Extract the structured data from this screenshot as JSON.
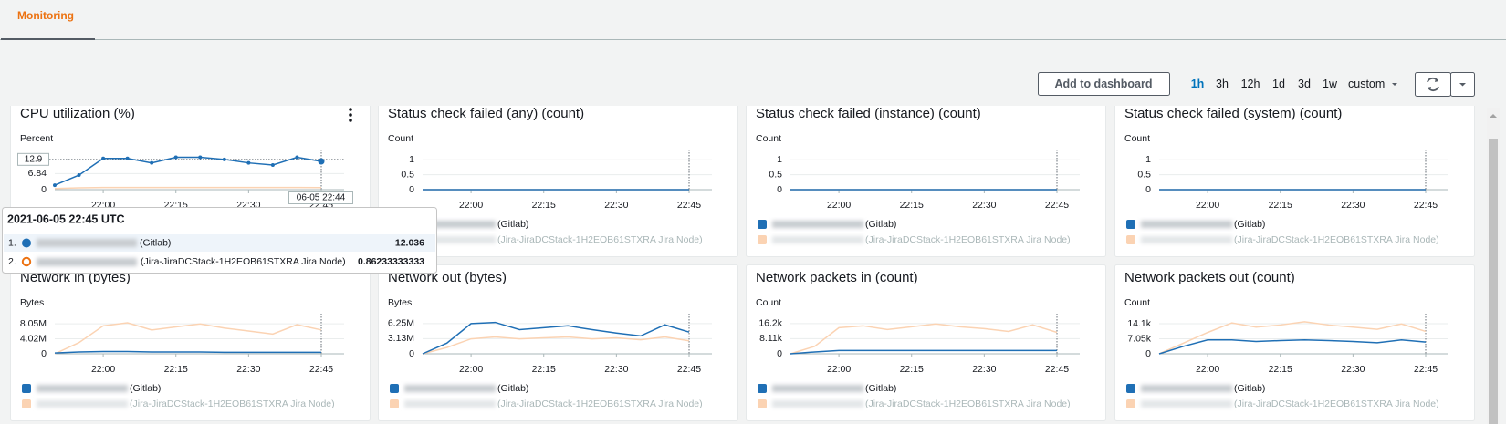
{
  "tabs": {
    "active": "Monitoring"
  },
  "toolbar": {
    "add_button": "Add to dashboard",
    "ranges": [
      "1h",
      "3h",
      "12h",
      "1d",
      "3d",
      "1w"
    ],
    "active_range": 0,
    "custom": "custom"
  },
  "widgets": [
    {
      "title": "CPU utilization (%)",
      "y_label": "Percent",
      "ylim": [
        0,
        14
      ],
      "yticks": [
        0,
        6.84
      ],
      "hover_value": 12.9,
      "hover_x_label": "06-05 22:44",
      "markers": true,
      "xticks": [
        "22:00",
        "22:15",
        "22:30",
        "22:45"
      ],
      "series": [
        {
          "name": "(Gitlab)",
          "color": "#1f6fb5",
          "values": [
            1.9,
            6.2,
            13.3,
            13.3,
            11.4,
            13.8,
            13.8,
            12.9,
            11.4,
            10.5,
            13.8,
            12.036
          ]
        },
        {
          "name": "(Jira-JiraDCStack-1H2EOB61STXRA Jira Node)",
          "color": "#fbd3b3",
          "values": [
            0.5,
            0.8,
            0.9,
            0.9,
            0.9,
            0.9,
            0.9,
            0.9,
            0.9,
            0.9,
            0.9,
            0.86233333333
          ]
        }
      ]
    },
    {
      "title": "Status check failed (any) (count)",
      "y_label": "Count",
      "ylim": [
        0,
        1.1
      ],
      "yticks": [
        0,
        0.5,
        1
      ],
      "xticks": [
        "22:00",
        "22:15",
        "22:30",
        "22:45"
      ],
      "series": [
        {
          "name": "(Gitlab)",
          "color": "#1f6fb5",
          "values": [
            0,
            0,
            0,
            0,
            0,
            0,
            0,
            0,
            0,
            0,
            0,
            0
          ]
        },
        {
          "name": "(Jira-JiraDCStack-1H2EOB61STXRA Jira Node)",
          "color": "#fbd3b3",
          "values": [
            0,
            0,
            0,
            0,
            0,
            0,
            0,
            0,
            0,
            0,
            0,
            0
          ]
        }
      ]
    },
    {
      "title": "Status check failed (instance) (count)",
      "y_label": "Count",
      "ylim": [
        0,
        1.1
      ],
      "yticks": [
        0,
        0.5,
        1
      ],
      "xticks": [
        "22:00",
        "22:15",
        "22:30",
        "22:45"
      ],
      "series": [
        {
          "name": "(Gitlab)",
          "color": "#1f6fb5",
          "values": [
            0,
            0,
            0,
            0,
            0,
            0,
            0,
            0,
            0,
            0,
            0,
            0
          ]
        },
        {
          "name": "(Jira-JiraDCStack-1H2EOB61STXRA Jira Node)",
          "color": "#fbd3b3",
          "values": [
            0,
            0,
            0,
            0,
            0,
            0,
            0,
            0,
            0,
            0,
            0,
            0
          ]
        }
      ]
    },
    {
      "title": "Status check failed (system) (count)",
      "y_label": "Count",
      "ylim": [
        0,
        1.1
      ],
      "yticks": [
        0,
        0.5,
        1
      ],
      "xticks": [
        "22:00",
        "22:15",
        "22:30",
        "22:45"
      ],
      "series": [
        {
          "name": "(Gitlab)",
          "color": "#1f6fb5",
          "values": [
            0,
            0,
            0,
            0,
            0,
            0,
            0,
            0,
            0,
            0,
            0,
            0
          ]
        },
        {
          "name": "(Jira-JiraDCStack-1H2EOB61STXRA Jira Node)",
          "color": "#fbd3b3",
          "values": [
            0,
            0,
            0,
            0,
            0,
            0,
            0,
            0,
            0,
            0,
            0,
            0
          ]
        }
      ]
    },
    {
      "title": "Network in (bytes)",
      "y_label": "Bytes",
      "ylim": [
        0,
        8800000
      ],
      "yticks": [
        0,
        {
          "value": 4020000,
          "label": "4.02M"
        },
        {
          "value": 8050000,
          "label": "8.05M"
        }
      ],
      "xticks": [
        "22:00",
        "22:15",
        "22:30",
        "22:45"
      ],
      "series": [
        {
          "name": "(Gitlab)",
          "color": "#1f6fb5",
          "values": [
            200000,
            500000,
            600000,
            600000,
            500000,
            500000,
            500000,
            400000,
            400000,
            400000,
            400000,
            400000
          ]
        },
        {
          "name": "(Jira-JiraDCStack-1H2EOB61STXRA Jira Node)",
          "color": "#fbd3b3",
          "values": [
            0,
            3000000,
            7500000,
            8300000,
            6400000,
            7200000,
            8000000,
            6900000,
            6100000,
            5300000,
            7800000,
            6400000
          ]
        }
      ]
    },
    {
      "title": "Network out (bytes)",
      "y_label": "Bytes",
      "ylim": [
        0,
        6800000
      ],
      "yticks": [
        0,
        {
          "value": 3130000,
          "label": "3.13M"
        },
        {
          "value": 6250000,
          "label": "6.25M"
        }
      ],
      "xticks": [
        "22:00",
        "22:15",
        "22:30",
        "22:45"
      ],
      "series": [
        {
          "name": "(Gitlab)",
          "color": "#1f6fb5",
          "values": [
            0,
            2200000,
            6250000,
            6500000,
            5000000,
            5400000,
            5800000,
            5000000,
            4300000,
            3700000,
            6000000,
            4500000
          ]
        },
        {
          "name": "(Jira-JiraDCStack-1H2EOB61STXRA Jira Node)",
          "color": "#fbd3b3",
          "values": [
            0,
            1300000,
            3100000,
            3500000,
            3100000,
            3300000,
            3500000,
            3100000,
            3300000,
            2900000,
            3500000,
            2700000
          ]
        }
      ]
    },
    {
      "title": "Network packets in (count)",
      "y_label": "Count",
      "ylim": [
        0,
        17600
      ],
      "yticks": [
        0,
        {
          "value": 8110,
          "label": "8.11k"
        },
        {
          "value": 16200,
          "label": "16.2k"
        }
      ],
      "xticks": [
        "22:00",
        "22:15",
        "22:30",
        "22:45"
      ],
      "series": [
        {
          "name": "(Gitlab)",
          "color": "#1f6fb5",
          "values": [
            0,
            1000,
            1800,
            1800,
            1800,
            1800,
            1800,
            1800,
            1800,
            1800,
            1800,
            1800
          ]
        },
        {
          "name": "(Jira-JiraDCStack-1H2EOB61STXRA Jira Node)",
          "color": "#fbd3b3",
          "values": [
            0,
            4000,
            14000,
            15000,
            13000,
            14500,
            16000,
            14500,
            13500,
            12000,
            15500,
            11500
          ]
        }
      ]
    },
    {
      "title": "Network packets out (count)",
      "y_label": "Count",
      "ylim": [
        0,
        15400
      ],
      "yticks": [
        0,
        {
          "value": 7050,
          "label": "7.05k"
        },
        {
          "value": 14100,
          "label": "14.1k"
        }
      ],
      "xticks": [
        "22:00",
        "22:15",
        "22:30",
        "22:45"
      ],
      "series": [
        {
          "name": "(Gitlab)",
          "color": "#1f6fb5",
          "values": [
            0,
            3500,
            6500,
            6500,
            5800,
            6200,
            6500,
            6200,
            5800,
            5200,
            6500,
            5500
          ]
        },
        {
          "name": "(Jira-JiraDCStack-1H2EOB61STXRA Jira Node)",
          "color": "#fbd3b3",
          "values": [
            0,
            5000,
            10000,
            14500,
            12500,
            13500,
            15000,
            13500,
            12500,
            11500,
            14000,
            10500
          ]
        }
      ]
    }
  ],
  "tooltip": {
    "time": "2021-06-05 22:45 UTC",
    "rows": [
      {
        "index": "1.",
        "name": "(Gitlab)",
        "value": 12.036
      },
      {
        "index": "2.",
        "name": "(Jira-JiraDCStack-1H2EOB61STXRA Jira Node)",
        "value": 0.86233333333
      }
    ]
  }
}
